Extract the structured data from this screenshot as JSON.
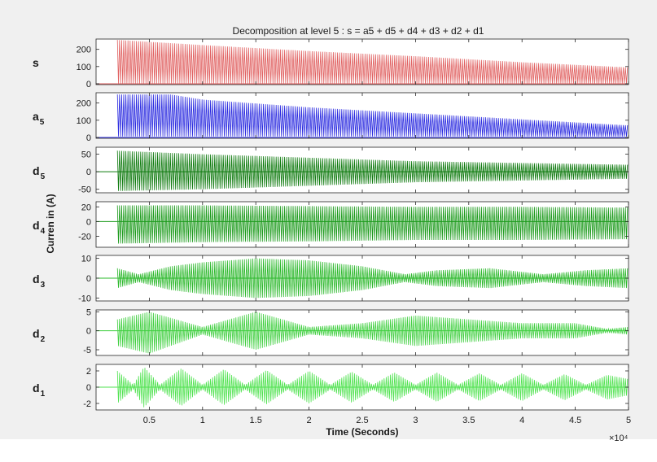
{
  "chart_data": {
    "type": "line",
    "title": "Decomposition at level 5 : s = a5 + d5 + d4 + d3 + d2 + d1",
    "xlabel": "Time (Seconds)",
    "ylabel": "Curren in (A)",
    "x_multiplier_label": "×10⁴",
    "xlim": [
      0,
      5
    ],
    "xticks": [
      0.5,
      1,
      1.5,
      2,
      2.5,
      3,
      3.5,
      4,
      4.5,
      5
    ],
    "xtick_labels": [
      "0.5",
      "1",
      "1.5",
      "2",
      "2.5",
      "3",
      "3.5",
      "4",
      "4.5",
      "5"
    ],
    "signal_start_x": 0.2,
    "panels": [
      {
        "base": "s",
        "sub": "",
        "color": "#e06060",
        "ylim": [
          -5,
          260
        ],
        "yticks": [
          0,
          100,
          200
        ],
        "ytick_labels": [
          "0",
          "100",
          "200"
        ],
        "envelope": {
          "x": [
            0.2,
            1,
            2,
            3,
            4,
            5
          ],
          "upper": [
            255,
            225,
            190,
            160,
            125,
            95
          ],
          "lower": [
            0,
            0,
            0,
            0,
            0,
            0
          ]
        }
      },
      {
        "base": "a",
        "sub": "5",
        "color": "#2a2ae0",
        "ylim": [
          -5,
          260
        ],
        "yticks": [
          0,
          100,
          200
        ],
        "ytick_labels": [
          "0",
          "100",
          "200"
        ],
        "envelope": {
          "x": [
            0.2,
            0.7,
            1,
            2,
            3,
            4,
            5
          ],
          "upper": [
            250,
            250,
            220,
            175,
            140,
            105,
            70
          ],
          "lower": [
            5,
            5,
            5,
            5,
            5,
            5,
            5
          ]
        }
      },
      {
        "base": "d",
        "sub": "5",
        "color": "#0d7a0d",
        "ylim": [
          -60,
          70
        ],
        "yticks": [
          -50,
          0,
          50
        ],
        "ytick_labels": [
          "-50",
          "0",
          "50"
        ],
        "envelope": {
          "x": [
            0.2,
            1,
            2,
            3,
            4,
            5
          ],
          "upper": [
            60,
            50,
            40,
            30,
            25,
            20
          ],
          "lower": [
            -55,
            -50,
            -40,
            -30,
            -25,
            -20
          ]
        }
      },
      {
        "base": "d",
        "sub": "4",
        "color": "#1a9a1a",
        "ylim": [
          -35,
          27
        ],
        "yticks": [
          -20,
          0,
          20
        ],
        "ytick_labels": [
          "-20",
          "0",
          "20"
        ],
        "envelope": {
          "x": [
            0.2,
            1,
            2,
            3,
            4,
            5
          ],
          "upper": [
            22,
            22,
            21,
            20,
            20,
            19
          ],
          "lower": [
            -30,
            -28,
            -27,
            -25,
            -25,
            -24
          ]
        }
      },
      {
        "base": "d",
        "sub": "3",
        "color": "#2ab82a",
        "ylim": [
          -11.5,
          11.5
        ],
        "yticks": [
          -10,
          0,
          10
        ],
        "ytick_labels": [
          "-10",
          "0",
          "10"
        ],
        "envelope": {
          "x": [
            0.2,
            0.4,
            0.7,
            1,
            1.5,
            2,
            2.5,
            2.9,
            3.2,
            3.7,
            4.2,
            4.6,
            5
          ],
          "upper": [
            5,
            2,
            6,
            8,
            10,
            9,
            6,
            2,
            4,
            5,
            2,
            4,
            5
          ],
          "lower": [
            -5,
            -2,
            -6,
            -8,
            -10,
            -9,
            -6,
            -2,
            -4,
            -5,
            -2,
            -4,
            -5
          ]
        }
      },
      {
        "base": "d",
        "sub": "2",
        "color": "#3fcf3f",
        "ylim": [
          -6.5,
          5.5
        ],
        "yticks": [
          -5,
          0,
          5
        ],
        "ytick_labels": [
          "-5",
          "0",
          "5"
        ],
        "envelope": {
          "x": [
            0.2,
            0.5,
            1,
            1.5,
            2,
            2.5,
            3,
            3.5,
            4,
            4.5,
            4.8,
            5
          ],
          "upper": [
            3,
            5,
            1,
            5,
            1,
            2,
            4,
            3,
            2,
            2,
            0.5,
            1
          ],
          "lower": [
            -4,
            -6,
            -1,
            -5,
            -1,
            -2,
            -4,
            -3,
            -2,
            -2,
            -0.5,
            -1
          ]
        }
      },
      {
        "base": "d",
        "sub": "1",
        "color": "#4fe24f",
        "ylim": [
          -2.8,
          2.8
        ],
        "yticks": [
          -2,
          0,
          2
        ],
        "ytick_labels": [
          "-2",
          "0",
          "2"
        ],
        "envelope": {
          "x": [
            0.2,
            0.35,
            0.45,
            0.6,
            0.8,
            1,
            1.2,
            1.4,
            1.6,
            1.8,
            2,
            2.2,
            2.4,
            2.6,
            2.8,
            3,
            3.2,
            3.4,
            3.6,
            3.8,
            4,
            4.2,
            4.4,
            4.6,
            4.8,
            5
          ],
          "upper": [
            2,
            0.3,
            2.5,
            0.3,
            2.3,
            0.3,
            2.2,
            0.3,
            2.1,
            0.3,
            2.0,
            0.3,
            1.9,
            0.3,
            1.8,
            0.3,
            1.8,
            0.3,
            1.7,
            0.3,
            1.7,
            0.3,
            1.6,
            0.3,
            1.5,
            1
          ],
          "lower": [
            -2,
            -0.3,
            -2.5,
            -0.3,
            -2.3,
            -0.3,
            -2.2,
            -0.3,
            -2.1,
            -0.3,
            -2.0,
            -0.3,
            -1.9,
            -0.3,
            -1.8,
            -0.3,
            -1.8,
            -0.3,
            -1.7,
            -0.3,
            -1.7,
            -0.3,
            -1.6,
            -0.3,
            -1.5,
            -1
          ]
        }
      }
    ]
  }
}
